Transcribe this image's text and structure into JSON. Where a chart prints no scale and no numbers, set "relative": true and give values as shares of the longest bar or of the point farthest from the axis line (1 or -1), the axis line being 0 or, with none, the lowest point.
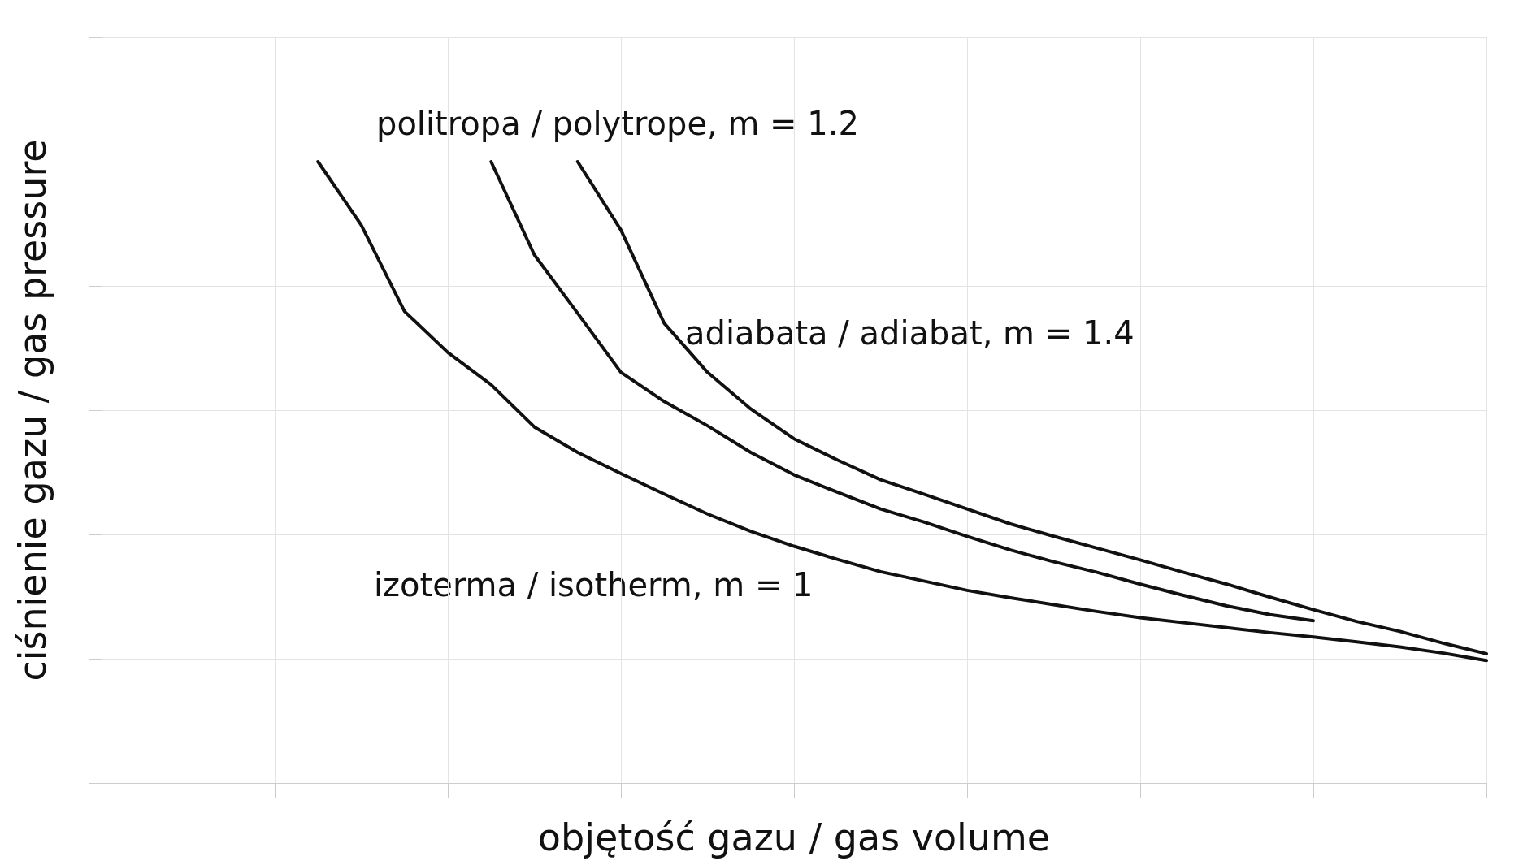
{
  "chart_data": {
    "type": "line",
    "relative": true,
    "xlabel": "objętość gazu / gas volume",
    "ylabel": "ciśnienie gazu / gas pressure",
    "categories": [
      null,
      null,
      null,
      null,
      null,
      null,
      null,
      null,
      null,
      null,
      null,
      null,
      null,
      null,
      null,
      null,
      null,
      null,
      null,
      null,
      null,
      null,
      null,
      null,
      null,
      null,
      null,
      null,
      null,
      null,
      null,
      null,
      null
    ],
    "series": [
      {
        "name": "izoterma / isotherm, m = 1",
        "color": "#111111",
        "values": [
          null,
          null,
          null,
          null,
          null,
          1.0,
          0.898,
          0.759,
          0.693,
          0.641,
          0.573,
          0.532,
          0.498,
          0.465,
          0.433,
          0.405,
          0.381,
          0.36,
          0.34,
          0.325,
          0.31,
          0.298,
          0.287,
          0.276,
          0.266,
          0.258,
          0.25,
          0.242,
          0.235,
          0.227,
          0.219,
          0.209,
          0.197
        ]
      },
      {
        "name": "politropa / polytrope, m = 1.2",
        "color": "#111111",
        "values": [
          null,
          null,
          null,
          null,
          null,
          null,
          null,
          null,
          null,
          1.0,
          0.85,
          0.756,
          0.661,
          0.614,
          0.575,
          0.532,
          0.496,
          0.468,
          0.441,
          0.42,
          0.397,
          0.375,
          0.356,
          0.339,
          0.32,
          0.302,
          0.285,
          0.271,
          0.261,
          null,
          null,
          null,
          null
        ]
      },
      {
        "name": "adiabata / adiabat, m = 1.4",
        "color": "#111111",
        "values": [
          null,
          null,
          null,
          null,
          null,
          null,
          null,
          null,
          null,
          null,
          null,
          1.0,
          0.89,
          0.74,
          0.661,
          0.602,
          0.554,
          0.52,
          0.488,
          0.465,
          0.441,
          0.417,
          0.397,
          0.378,
          0.359,
          0.339,
          0.32,
          0.299,
          0.279,
          0.26,
          0.244,
          0.225,
          0.208
        ]
      }
    ],
    "grid": true,
    "legend": false,
    "marker": "none",
    "line_style": "solid"
  }
}
